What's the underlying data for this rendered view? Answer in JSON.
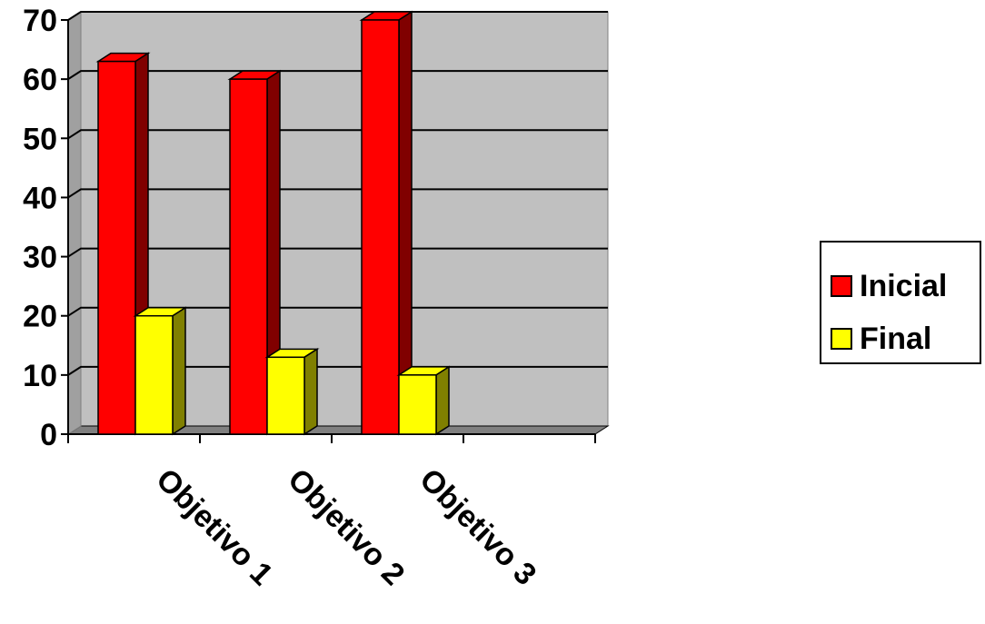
{
  "chart_data": {
    "type": "bar",
    "categories": [
      "Objetivo 1",
      "Objetivo 2",
      "Objetivo 3"
    ],
    "series": [
      {
        "name": "Inicial",
        "values": [
          63,
          60,
          70
        ],
        "color": "#ff0000",
        "side_color": "#800000"
      },
      {
        "name": "Final",
        "values": [
          20,
          13,
          10
        ],
        "color": "#ffff00",
        "side_color": "#808000"
      }
    ],
    "ylim": [
      0,
      70
    ],
    "yticks": [
      "0",
      "10",
      "20",
      "30",
      "40",
      "50",
      "60",
      "70"
    ],
    "grid": true,
    "legend_position": "right",
    "plot_background": "#c0c0c0",
    "three_d": true
  }
}
